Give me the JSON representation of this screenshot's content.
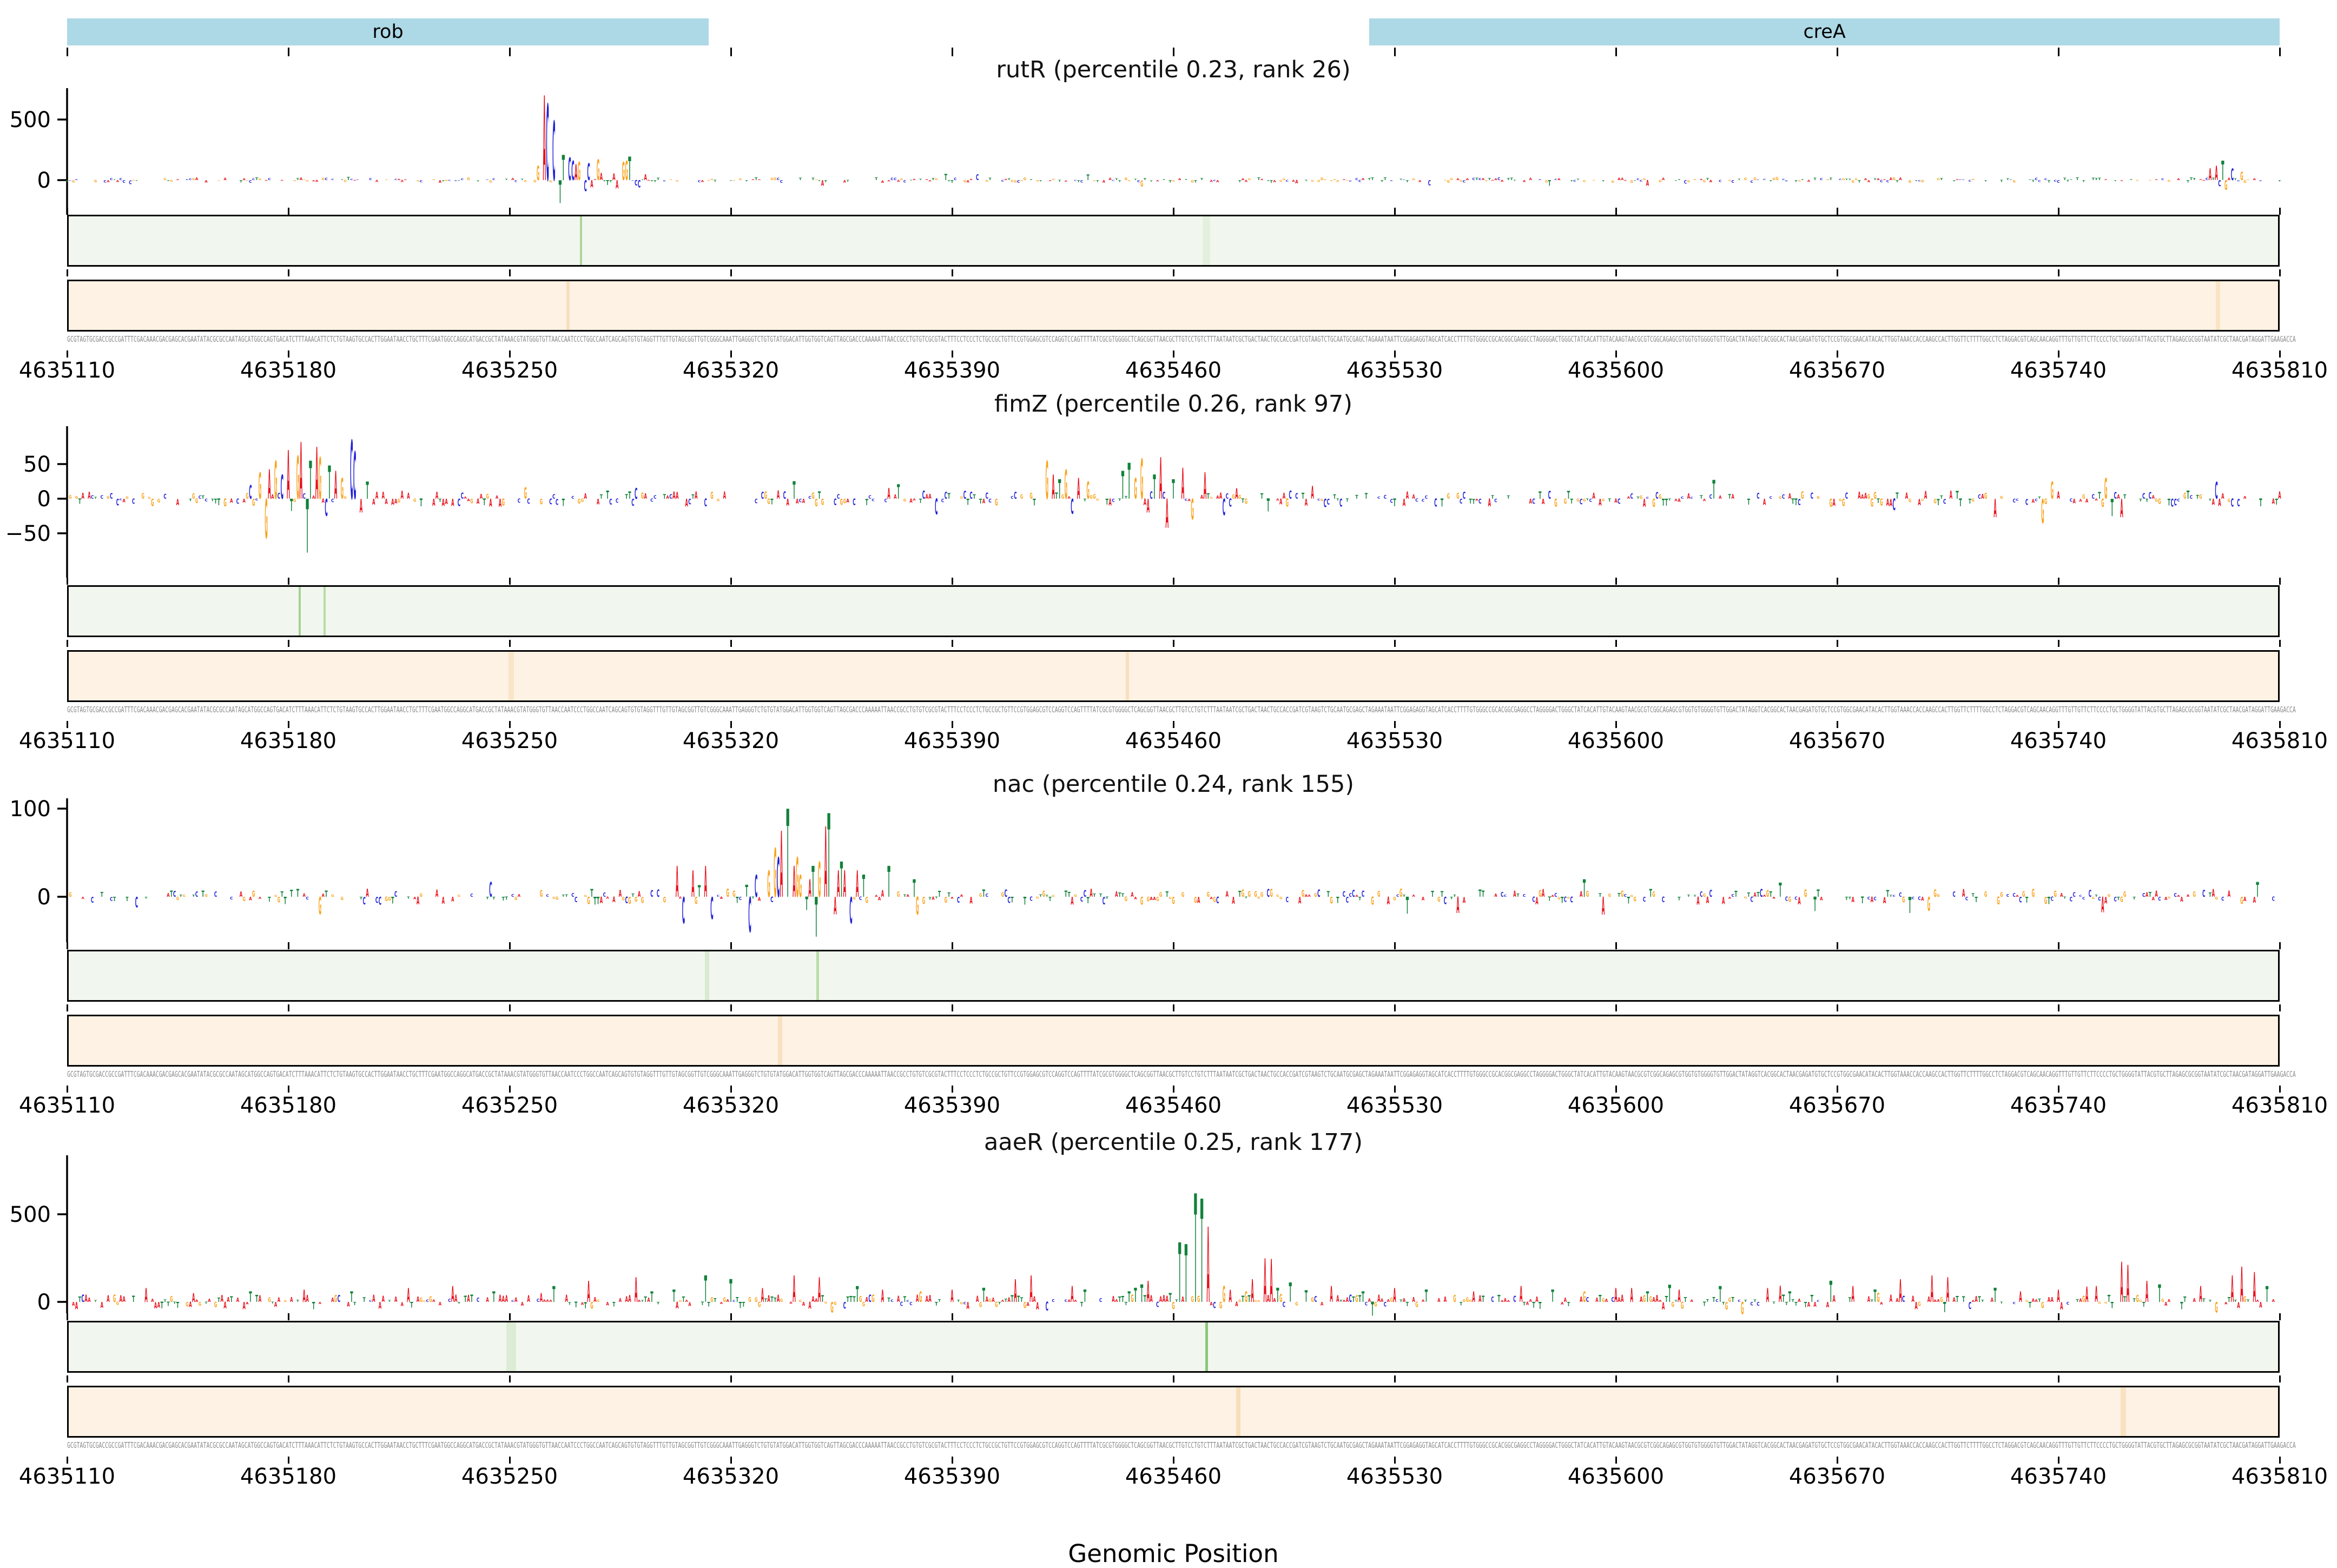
{
  "chart_data": {
    "type": "genomic-attribution-tracks",
    "x_axis": {
      "label": "Genomic Position",
      "start": 4635110,
      "end": 4635810,
      "tick_interval": 70,
      "ticks": [
        4635110,
        4635180,
        4635250,
        4635320,
        4635390,
        4635460,
        4635530,
        4635600,
        4635670,
        4635740,
        4635810
      ]
    },
    "gene_annotations": [
      {
        "label": "rob",
        "start": 4635110,
        "end": 4635313,
        "color": "#add8e6"
      },
      {
        "label": "creA",
        "start": 4635522,
        "end": 4635810,
        "color": "#add8e6"
      }
    ],
    "base_colors": {
      "A": "#e8101c",
      "C": "#2121d9",
      "G": "#f9a21a",
      "T": "#12823b"
    },
    "tracks": [
      {
        "name": "rutR",
        "title": "rutR (percentile 0.23, rank 26)",
        "percentile": 0.23,
        "rank": 26,
        "y_ticks": [
          0,
          500
        ],
        "peaks": [
          [
            4635259,
            120,
            "G"
          ],
          [
            4635261,
            700,
            "A"
          ],
          [
            4635262,
            630,
            "C"
          ],
          [
            4635264,
            490,
            "C"
          ],
          [
            4635266,
            -190,
            "T"
          ],
          [
            4635267,
            210,
            "T"
          ],
          [
            4635269,
            190,
            "C"
          ],
          [
            4635270,
            160,
            "C"
          ],
          [
            4635271,
            130,
            "A"
          ],
          [
            4635272,
            150,
            "G"
          ],
          [
            4635274,
            -90,
            "C"
          ],
          [
            4635275,
            140,
            "C"
          ],
          [
            4635276,
            -60,
            "A"
          ],
          [
            4635278,
            170,
            "G"
          ],
          [
            4635279,
            60,
            "A"
          ],
          [
            4635281,
            -40,
            "T"
          ],
          [
            4635283,
            55,
            "A"
          ],
          [
            4635284,
            -70,
            "A"
          ],
          [
            4635286,
            150,
            "G"
          ],
          [
            4635287,
            160,
            "G"
          ],
          [
            4635288,
            195,
            "T"
          ],
          [
            4635290,
            -45,
            "C"
          ],
          [
            4635291,
            -60,
            "C"
          ],
          [
            4635293,
            50,
            "A"
          ],
          [
            4635788,
            100,
            "A"
          ],
          [
            4635790,
            120,
            "A"
          ],
          [
            4635792,
            160,
            "T"
          ],
          [
            4635793,
            -80,
            "G"
          ],
          [
            4635795,
            95,
            "C"
          ],
          [
            4635798,
            70,
            "G"
          ]
        ],
        "noise": {
          "amp": 26,
          "density": 0.55,
          "pos_bias": 0.5,
          "seed": 11
        },
        "green_strip": {
          "color": "#f1f7ee",
          "lines": [
            [
              4635272,
              "#aed49a",
              4
            ],
            [
              4635470,
              "#e4f0dd",
              14
            ]
          ]
        },
        "orange_strip": {
          "color": "#fdf2e4",
          "lines": [
            [
              4635268,
              "#f8e0bd",
              6
            ],
            [
              4635790,
              "#f9e4c4",
              8
            ]
          ]
        }
      },
      {
        "name": "fimZ",
        "title": "fimZ (percentile 0.26, rank 97)",
        "percentile": 0.26,
        "rank": 97,
        "y_ticks": [
          -50,
          0,
          50
        ],
        "peaks": [
          [
            4635168,
            20,
            "C"
          ],
          [
            4635171,
            38,
            "G"
          ],
          [
            4635173,
            -57,
            "G"
          ],
          [
            4635174,
            42,
            "A"
          ],
          [
            4635176,
            55,
            "G"
          ],
          [
            4635178,
            35,
            "C"
          ],
          [
            4635180,
            70,
            "A"
          ],
          [
            4635181,
            -18,
            "T"
          ],
          [
            4635183,
            62,
            "G"
          ],
          [
            4635184,
            82,
            "A"
          ],
          [
            4635186,
            -78,
            "T"
          ],
          [
            4635187,
            55,
            "T"
          ],
          [
            4635189,
            75,
            "A"
          ],
          [
            4635190,
            60,
            "G"
          ],
          [
            4635192,
            -25,
            "C"
          ],
          [
            4635193,
            48,
            "T"
          ],
          [
            4635195,
            40,
            "A"
          ],
          [
            4635197,
            30,
            "G"
          ],
          [
            4635200,
            85,
            "C"
          ],
          [
            4635201,
            68,
            "C"
          ],
          [
            4635203,
            -20,
            "A"
          ],
          [
            4635205,
            25,
            "T"
          ],
          [
            4635420,
            55,
            "G"
          ],
          [
            4635422,
            35,
            "A"
          ],
          [
            4635424,
            28,
            "T"
          ],
          [
            4635426,
            42,
            "G"
          ],
          [
            4635428,
            -22,
            "C"
          ],
          [
            4635430,
            30,
            "A"
          ],
          [
            4635433,
            25,
            "G"
          ],
          [
            4635444,
            40,
            "T"
          ],
          [
            4635446,
            52,
            "T"
          ],
          [
            4635448,
            30,
            "G"
          ],
          [
            4635450,
            58,
            "G"
          ],
          [
            4635452,
            -20,
            "A"
          ],
          [
            4635454,
            35,
            "T"
          ],
          [
            4635456,
            60,
            "A"
          ],
          [
            4635458,
            -42,
            "A"
          ],
          [
            4635460,
            28,
            "T"
          ],
          [
            4635463,
            45,
            "A"
          ],
          [
            4635466,
            -30,
            "G"
          ],
          [
            4635470,
            38,
            "A"
          ],
          [
            4635735,
            -35,
            "G"
          ],
          [
            4635738,
            25,
            "G"
          ],
          [
            4635755,
            30,
            "G"
          ],
          [
            4635757,
            -25,
            "T"
          ]
        ],
        "noise": {
          "amp": 13,
          "density": 0.6,
          "pos_bias": 0.5,
          "seed": 22
        },
        "green_strip": {
          "color": "#f1f7ee",
          "lines": [
            [
              4635183,
              "#a8d194",
              4
            ],
            [
              4635191,
              "#b7dba6",
              4
            ]
          ]
        },
        "orange_strip": {
          "color": "#fdf2e4",
          "lines": [
            [
              4635250,
              "#fae5c9",
              10
            ],
            [
              4635445,
              "#f8dfc0",
              6
            ]
          ]
        }
      },
      {
        "name": "nac",
        "title": "nac (percentile 0.24, rank 155)",
        "percentile": 0.24,
        "rank": 155,
        "y_ticks": [
          0,
          100
        ],
        "peaks": [
          [
            4635303,
            35,
            "A"
          ],
          [
            4635305,
            -30,
            "C"
          ],
          [
            4635308,
            30,
            "A"
          ],
          [
            4635312,
            35,
            "A"
          ],
          [
            4635314,
            -25,
            "C"
          ],
          [
            4635326,
            -40,
            "C"
          ],
          [
            4635328,
            25,
            "C"
          ],
          [
            4635332,
            30,
            "G"
          ],
          [
            4635334,
            55,
            "G"
          ],
          [
            4635335,
            45,
            "C"
          ],
          [
            4635336,
            75,
            "A"
          ],
          [
            4635338,
            100,
            "T"
          ],
          [
            4635340,
            35,
            "A"
          ],
          [
            4635341,
            45,
            "G"
          ],
          [
            4635342,
            25,
            "G"
          ],
          [
            4635344,
            -15,
            "T"
          ],
          [
            4635345,
            20,
            "A"
          ],
          [
            4635346,
            35,
            "T"
          ],
          [
            4635347,
            -45,
            "T"
          ],
          [
            4635348,
            40,
            "G"
          ],
          [
            4635350,
            80,
            "A"
          ],
          [
            4635351,
            95,
            "T"
          ],
          [
            4635353,
            -20,
            "A"
          ],
          [
            4635354,
            30,
            "A"
          ],
          [
            4635355,
            40,
            "T"
          ],
          [
            4635356,
            30,
            "A"
          ],
          [
            4635358,
            -30,
            "C"
          ],
          [
            4635360,
            30,
            "A"
          ],
          [
            4635362,
            25,
            "T"
          ],
          [
            4635370,
            35,
            "T"
          ],
          [
            4635378,
            20,
            "T"
          ]
        ],
        "noise": {
          "amp": 10,
          "density": 0.55,
          "pos_bias": 0.5,
          "seed": 33
        },
        "green_strip": {
          "color": "#f1f7ee",
          "lines": [
            [
              4635347,
              "#b9dca9",
              5
            ],
            [
              4635312,
              "#d8ead0",
              8
            ]
          ]
        },
        "orange_strip": {
          "color": "#fdf2e4",
          "lines": [
            [
              4635335,
              "#f8e0c0",
              8
            ]
          ]
        }
      },
      {
        "name": "aaeR",
        "title": "aaeR (percentile 0.25, rank 177)",
        "percentile": 0.25,
        "rank": 177,
        "y_ticks": [
          0,
          500
        ],
        "peaks": [
          [
            4635135,
            80,
            "A"
          ],
          [
            4635150,
            50,
            "A"
          ],
          [
            4635168,
            60,
            "T"
          ],
          [
            4635185,
            70,
            "A"
          ],
          [
            4635200,
            60,
            "T"
          ],
          [
            4635218,
            80,
            "A"
          ],
          [
            4635232,
            90,
            "A"
          ],
          [
            4635245,
            60,
            "T"
          ],
          [
            4635260,
            50,
            "A"
          ],
          [
            4635275,
            120,
            "A"
          ],
          [
            4635290,
            140,
            "A"
          ],
          [
            4635302,
            70,
            "T"
          ],
          [
            4635312,
            150,
            "T"
          ],
          [
            4635320,
            130,
            "T"
          ],
          [
            4635330,
            80,
            "A"
          ],
          [
            4635340,
            150,
            "A"
          ],
          [
            4635348,
            140,
            "A"
          ],
          [
            4635352,
            -60,
            "G"
          ],
          [
            4635360,
            90,
            "T"
          ],
          [
            4635368,
            70,
            "A"
          ],
          [
            4635380,
            60,
            "G"
          ],
          [
            4635390,
            70,
            "A"
          ],
          [
            4635400,
            80,
            "T"
          ],
          [
            4635410,
            130,
            "A"
          ],
          [
            4635415,
            150,
            "A"
          ],
          [
            4635420,
            -50,
            "C"
          ],
          [
            4635428,
            90,
            "A"
          ],
          [
            4635432,
            70,
            "T"
          ],
          [
            4635446,
            60,
            "T"
          ],
          [
            4635448,
            80,
            "T"
          ],
          [
            4635450,
            100,
            "T"
          ],
          [
            4635452,
            120,
            "A"
          ],
          [
            4635455,
            -30,
            "C"
          ],
          [
            4635457,
            40,
            "A"
          ],
          [
            4635459,
            50,
            "T"
          ],
          [
            4635460,
            -40,
            "G"
          ],
          [
            4635462,
            340,
            "T"
          ],
          [
            4635464,
            330,
            "T"
          ],
          [
            4635467,
            620,
            "T"
          ],
          [
            4635469,
            590,
            "T"
          ],
          [
            4635471,
            430,
            "A"
          ],
          [
            4635473,
            -35,
            "C"
          ],
          [
            4635476,
            90,
            "G"
          ],
          [
            4635478,
            70,
            "A"
          ],
          [
            4635480,
            -25,
            "A"
          ],
          [
            4635483,
            60,
            "G"
          ],
          [
            4635485,
            130,
            "A"
          ],
          [
            4635489,
            250,
            "A"
          ],
          [
            4635491,
            245,
            "A"
          ],
          [
            4635493,
            80,
            "T"
          ],
          [
            4635495,
            -30,
            "C"
          ],
          [
            4635497,
            110,
            "T"
          ],
          [
            4635499,
            -20,
            "G"
          ],
          [
            4635510,
            90,
            "A"
          ],
          [
            4635520,
            60,
            "T"
          ],
          [
            4635530,
            80,
            "A"
          ],
          [
            4635540,
            70,
            "T"
          ],
          [
            4635555,
            60,
            "A"
          ],
          [
            4635570,
            90,
            "A"
          ],
          [
            4635580,
            70,
            "T"
          ],
          [
            4635590,
            60,
            "G"
          ],
          [
            4635600,
            80,
            "A"
          ],
          [
            4635610,
            60,
            "T"
          ],
          [
            4635620,
            70,
            "A"
          ],
          [
            4635633,
            90,
            "T"
          ],
          [
            4635640,
            -70,
            "G"
          ],
          [
            4635648,
            80,
            "A"
          ],
          [
            4635655,
            60,
            "T"
          ],
          [
            4635668,
            120,
            "T"
          ],
          [
            4635675,
            90,
            "A"
          ],
          [
            4635682,
            70,
            "T"
          ],
          [
            4635690,
            130,
            "A"
          ],
          [
            4635700,
            150,
            "A"
          ],
          [
            4635705,
            140,
            "A"
          ],
          [
            4635712,
            -40,
            "C"
          ],
          [
            4635720,
            80,
            "T"
          ],
          [
            4635728,
            60,
            "A"
          ],
          [
            4635740,
            70,
            "A"
          ],
          [
            4635752,
            90,
            "A"
          ],
          [
            4635760,
            230,
            "A"
          ],
          [
            4635762,
            210,
            "A"
          ],
          [
            4635768,
            120,
            "A"
          ],
          [
            4635772,
            100,
            "T"
          ],
          [
            4635785,
            90,
            "A"
          ],
          [
            4635790,
            -60,
            "G"
          ],
          [
            4635795,
            150,
            "A"
          ],
          [
            4635798,
            200,
            "A"
          ],
          [
            4635802,
            170,
            "A"
          ],
          [
            4635806,
            90,
            "T"
          ]
        ],
        "noise": {
          "amp": 48,
          "density": 0.65,
          "pos_bias": 0.72,
          "seed": 44
        },
        "green_strip": {
          "color": "#f1f7ee",
          "lines": [
            [
              4635470,
              "#8cc67a",
              5
            ],
            [
              4635250,
              "#ddecd5",
              18
            ]
          ]
        },
        "orange_strip": {
          "color": "#fdf2e4",
          "lines": [
            [
              4635480,
              "#f8ddba",
              8
            ],
            [
              4635760,
              "#f9e2c2",
              10
            ]
          ]
        }
      }
    ],
    "sequence_start": "GCGTAGTGCGACCGCCGATTTCGACAAACGACGAGCACGAATATACGCGCCAATAGCATGGCCAGTGACATCTTTAAACATTCTCTGTAAGTGCCACTTGGAATAACCTGCTTTCG",
    "sequence_mid": "TAATCAATATGTTATTTACCGTGACGAACTAATTGCTCGTGTAATAGATAAAAATGGTAACAATATGAA"
  }
}
